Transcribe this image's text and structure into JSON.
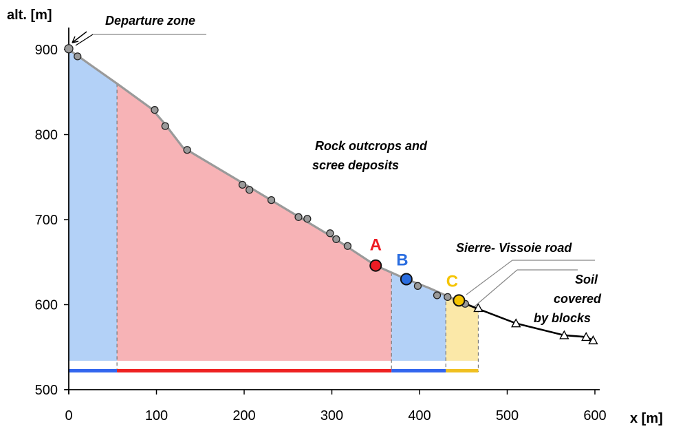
{
  "chart_data": {
    "type": "line",
    "xlabel": "x [m]",
    "ylabel": "alt. [m]",
    "xlim": [
      0,
      600
    ],
    "ylim": [
      500,
      925
    ],
    "x_ticks": [
      "0",
      "100",
      "200",
      "300",
      "400",
      "500",
      "600"
    ],
    "y_ticks": [
      "500",
      "600",
      "700",
      "800",
      "900"
    ],
    "profile_line": [
      [
        0,
        900
      ],
      [
        55,
        860
      ],
      [
        95,
        830
      ],
      [
        110,
        812
      ],
      [
        130,
        785
      ],
      [
        200,
        742
      ],
      [
        300,
        680
      ],
      [
        350,
        646
      ],
      [
        385,
        630
      ],
      [
        410,
        620
      ],
      [
        445,
        604
      ],
      [
        467,
        595
      ],
      [
        510,
        578
      ],
      [
        565,
        564
      ],
      [
        590,
        562
      ],
      [
        598,
        558
      ]
    ],
    "survey_points_circle": [
      [
        0,
        901
      ],
      [
        10,
        892
      ],
      [
        98,
        829
      ],
      [
        110,
        810
      ],
      [
        135,
        782
      ],
      [
        198,
        741
      ],
      [
        206,
        735
      ],
      [
        231,
        723
      ],
      [
        262,
        703
      ],
      [
        272,
        701
      ],
      [
        298,
        684
      ],
      [
        305,
        677
      ],
      [
        318,
        669
      ],
      [
        398,
        622
      ],
      [
        420,
        611
      ],
      [
        432,
        609
      ],
      [
        452,
        601
      ]
    ],
    "survey_points_triangle": [
      [
        467,
        596
      ],
      [
        510,
        578
      ],
      [
        565,
        564
      ],
      [
        590,
        562
      ],
      [
        598,
        558
      ]
    ],
    "regions": [
      {
        "x_from": 0,
        "x_to": 55,
        "color": "#b3d1f7",
        "bar_color": "#3366ee"
      },
      {
        "x_from": 55,
        "x_to": 368,
        "color": "#f7b3b6",
        "bar_color": "#ee2222"
      },
      {
        "x_from": 368,
        "x_to": 430,
        "color": "#b3d1f7",
        "bar_color": "#3366ee"
      },
      {
        "x_from": 430,
        "x_to": 467,
        "color": "#fbe8a8",
        "bar_color": "#f0c020"
      }
    ],
    "markers": [
      {
        "label": "A",
        "x": 350,
        "y": 646,
        "color": "#ee1c24"
      },
      {
        "label": "B",
        "x": 385,
        "y": 630,
        "color": "#2a6de0"
      },
      {
        "label": "C",
        "x": 445,
        "y": 605,
        "color": "#f5c400"
      }
    ],
    "annotations": [
      {
        "text": "Departure zone"
      },
      {
        "text": "Rock outcrops and"
      },
      {
        "text": "scree deposits"
      },
      {
        "text": "Sierre- Vissoie road"
      },
      {
        "text": "Soil"
      },
      {
        "text": "covered"
      },
      {
        "text": "by blocks"
      }
    ]
  }
}
